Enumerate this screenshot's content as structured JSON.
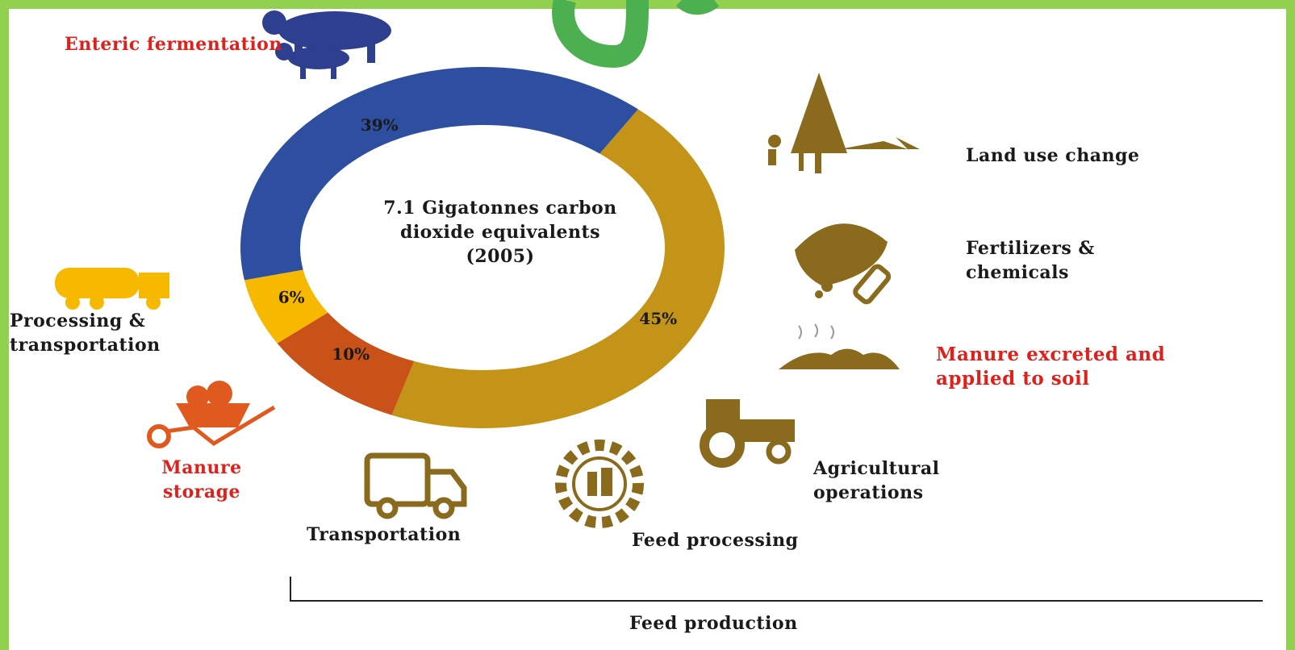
{
  "chart_data": {
    "type": "donut",
    "center_label": "7.1 Gigatonnes carbon dioxide equivalents (2005)",
    "categories": [
      "Feed production",
      "Manure storage",
      "Processing & transportation",
      "Enteric fermentation"
    ],
    "values": [
      45,
      10,
      6,
      39
    ],
    "value_labels": [
      "45%",
      "10%",
      "6%",
      "39%"
    ],
    "colors": [
      "#c39418",
      "#c95219",
      "#f7b900",
      "#2e4f9f"
    ],
    "annotations": [
      "Land use change",
      "Fertilizers & chemicals",
      "Manure excreted and applied to soil",
      "Agricultural operations",
      "Feed processing",
      "Transportation"
    ]
  }
}
